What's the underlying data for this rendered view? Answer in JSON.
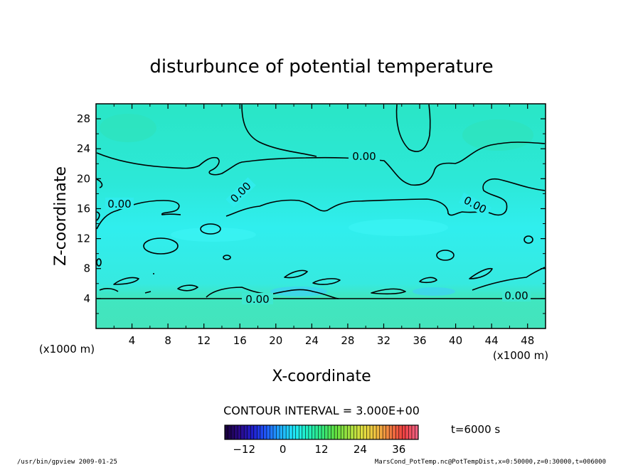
{
  "chart_data": {
    "type": "contour",
    "title": "disturbunce of potential temperature",
    "xlabel": "X-coordinate",
    "ylabel": "Z-coordinate",
    "x_unit": "(x1000 m)",
    "z_unit": "(x1000 m)",
    "xlim": [
      0,
      50
    ],
    "ylim": [
      0,
      30
    ],
    "x_ticks": [
      4,
      8,
      12,
      16,
      20,
      24,
      28,
      32,
      36,
      40,
      44,
      48
    ],
    "y_ticks": [
      4,
      8,
      12,
      16,
      20,
      24,
      28
    ],
    "contour_interval_text": "CONTOUR INTERVAL = 3.000E+00",
    "contour_labels": [
      "0.00",
      "0.00",
      "0.00",
      "0.00",
      "0.00",
      "0.00"
    ],
    "time_text": "t=6000 s",
    "colorbar": {
      "ticks": [
        -12,
        0,
        12,
        24,
        36
      ],
      "range": [
        -18,
        42
      ],
      "colors": [
        "#1a0040",
        "#2a0a8a",
        "#2020d0",
        "#2060ff",
        "#20b0ff",
        "#20e8f8",
        "#20f0c0",
        "#30e880",
        "#60e040",
        "#a0e040",
        "#e0e040",
        "#f0c040",
        "#f08040",
        "#f04040",
        "#f06080"
      ]
    },
    "field_colors": {
      "upper": "#28e8c8",
      "middle": "#30f0f0",
      "lower": "#40e8c0"
    },
    "line_color": "#000000"
  },
  "footer": {
    "left": "/usr/bin/gpview   2009-01-25",
    "right": "MarsCond_PotTemp.nc@PotTempDist,x=0:50000,z=0:30000,t=006000"
  }
}
